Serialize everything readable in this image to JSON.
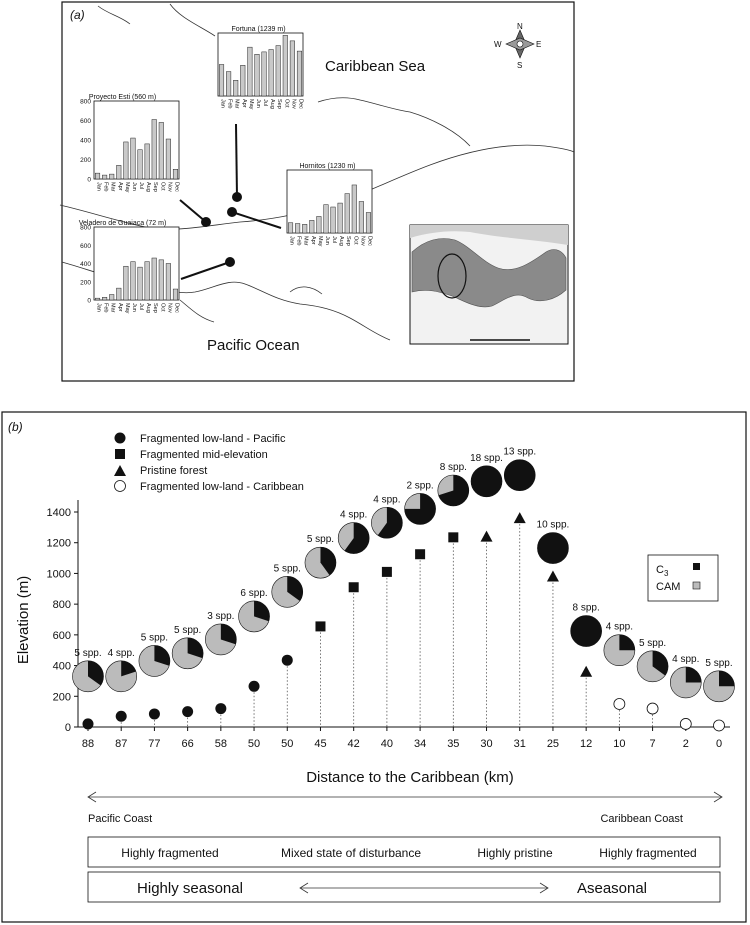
{
  "panel_a": {
    "label": "(a)",
    "sea_label": "Caribbean Sea",
    "ocean_label": "Pacific Ocean",
    "compass": {
      "n": "N",
      "s": "S",
      "e": "E",
      "w": "W"
    },
    "months": [
      "Jan",
      "Feb",
      "Mar",
      "Apr",
      "May",
      "Jun",
      "Jul",
      "Aug",
      "Sep",
      "Oct",
      "Nov",
      "Dec"
    ],
    "insets": [
      {
        "title": "Fortuna (1239 m)",
        "ymax": 800,
        "ticks": [],
        "values": [
          400,
          310,
          200,
          390,
          620,
          530,
          560,
          590,
          640,
          770,
          700,
          570
        ]
      },
      {
        "title": "Proyecto Esti (560 m)",
        "ymax": 800,
        "ticks": [
          "0",
          "200",
          "400",
          "600",
          "800"
        ],
        "values": [
          60,
          40,
          50,
          140,
          380,
          420,
          300,
          360,
          610,
          580,
          410,
          100
        ]
      },
      {
        "title": "Hornitos (1230 m)",
        "ymax": 800,
        "ticks": [],
        "values": [
          130,
          120,
          110,
          160,
          210,
          360,
          330,
          380,
          500,
          610,
          400,
          260
        ]
      },
      {
        "title": "Veladero de Guaiaca (72 m)",
        "ymax": 800,
        "ticks": [
          "0",
          "200",
          "400",
          "600",
          "800"
        ],
        "values": [
          20,
          30,
          60,
          130,
          370,
          420,
          360,
          420,
          460,
          440,
          400,
          120
        ]
      }
    ]
  },
  "panel_b": {
    "label": "(b)",
    "legend": [
      {
        "shape": "circle-filled",
        "label": "Fragmented low-land - Pacific"
      },
      {
        "shape": "square",
        "label": "Fragmented mid-elevation"
      },
      {
        "shape": "triangle",
        "label": "Pristine forest"
      },
      {
        "shape": "circle-open",
        "label": "Fragmented low-land - Caribbean"
      }
    ],
    "pie_legend": {
      "c3_label": "C",
      "c3_sub": "3",
      "cam_label": "CAM"
    },
    "bottom": {
      "pacific_coast": "Pacific Coast",
      "caribbean_coast": "Caribbean Coast",
      "box1": [
        "Highly fragmented",
        "Mixed state of disturbance",
        "Highly pristine",
        "Highly fragmented"
      ],
      "box2": [
        "Highly seasonal",
        "Aseasonal"
      ]
    }
  },
  "chart_data": {
    "type": "scatter",
    "xlabel": "Distance to the Caribbean (km)",
    "ylabel": "Elevation (m)",
    "ylim": [
      0,
      1400
    ],
    "yticks": [
      0,
      200,
      400,
      600,
      800,
      1000,
      1200,
      1400
    ],
    "x_categories": [
      "88",
      "87",
      "77",
      "66",
      "58",
      "50",
      "50",
      "45",
      "42",
      "40",
      "34",
      "35",
      "30",
      "31",
      "25",
      "12",
      "10",
      "7",
      "2",
      "0"
    ],
    "colors": {
      "c3": "#111111",
      "cam": "#bbbbbb"
    },
    "sites": [
      {
        "type": "circle-filled",
        "elevation": 20
      },
      {
        "type": "circle-filled",
        "elevation": 70
      },
      {
        "type": "circle-filled",
        "elevation": 85
      },
      {
        "type": "circle-filled",
        "elevation": 100
      },
      {
        "type": "circle-filled",
        "elevation": 120
      },
      {
        "type": "circle-filled",
        "elevation": 265
      },
      {
        "type": "circle-filled",
        "elevation": 435
      },
      {
        "type": "square",
        "elevation": 655
      },
      {
        "type": "square",
        "elevation": 910
      },
      {
        "type": "square",
        "elevation": 1010
      },
      {
        "type": "square",
        "elevation": 1125
      },
      {
        "type": "square",
        "elevation": 1235
      },
      {
        "type": "triangle",
        "elevation": 1240
      },
      {
        "type": "triangle",
        "elevation": 1360
      },
      {
        "type": "triangle",
        "elevation": 980
      },
      {
        "type": "triangle",
        "elevation": 360
      },
      {
        "type": "circle-open",
        "elevation": 150
      },
      {
        "type": "circle-open",
        "elevation": 120
      },
      {
        "type": "circle-open",
        "elevation": 20
      },
      {
        "type": "circle-open",
        "elevation": 10
      }
    ],
    "pies": [
      {
        "label": "5 spp.",
        "elevation": 330,
        "c3_fraction": 0.35
      },
      {
        "label": "4 spp.",
        "elevation": 330,
        "c3_fraction": 0.2
      },
      {
        "label": "5 spp.",
        "elevation": 430,
        "c3_fraction": 0.3
      },
      {
        "label": "5 spp.",
        "elevation": 480,
        "c3_fraction": 0.3
      },
      {
        "label": "3 spp.",
        "elevation": 570,
        "c3_fraction": 0.3
      },
      {
        "label": "6 spp.",
        "elevation": 720,
        "c3_fraction": 0.3
      },
      {
        "label": "5 spp.",
        "elevation": 880,
        "c3_fraction": 0.35
      },
      {
        "label": "5 spp.",
        "elevation": 1070,
        "c3_fraction": 0.4
      },
      {
        "label": "4 spp.",
        "elevation": 1230,
        "c3_fraction": 0.6
      },
      {
        "label": "4 spp.",
        "elevation": 1330,
        "c3_fraction": 0.6
      },
      {
        "label": "2 spp.",
        "elevation": 1420,
        "c3_fraction": 0.75
      },
      {
        "label": "8 spp.",
        "elevation": 1540,
        "c3_fraction": 0.7
      },
      {
        "label": "18 spp.",
        "elevation": 1600,
        "c3_fraction": 1.0
      },
      {
        "label": "13 spp.",
        "elevation": 1640,
        "c3_fraction": 1.0
      },
      {
        "label": "10 spp.",
        "elevation": 1165,
        "c3_fraction": 1.0
      },
      {
        "label": "8 spp.",
        "elevation": 625,
        "c3_fraction": 1.0
      },
      {
        "label": "4 spp.",
        "elevation": 500,
        "c3_fraction": 0.25
      },
      {
        "label": "5 spp.",
        "elevation": 395,
        "c3_fraction": 0.35
      },
      {
        "label": "4 spp.",
        "elevation": 290,
        "c3_fraction": 0.25
      },
      {
        "label": "5 spp.",
        "elevation": 265,
        "c3_fraction": 0.25
      }
    ]
  }
}
